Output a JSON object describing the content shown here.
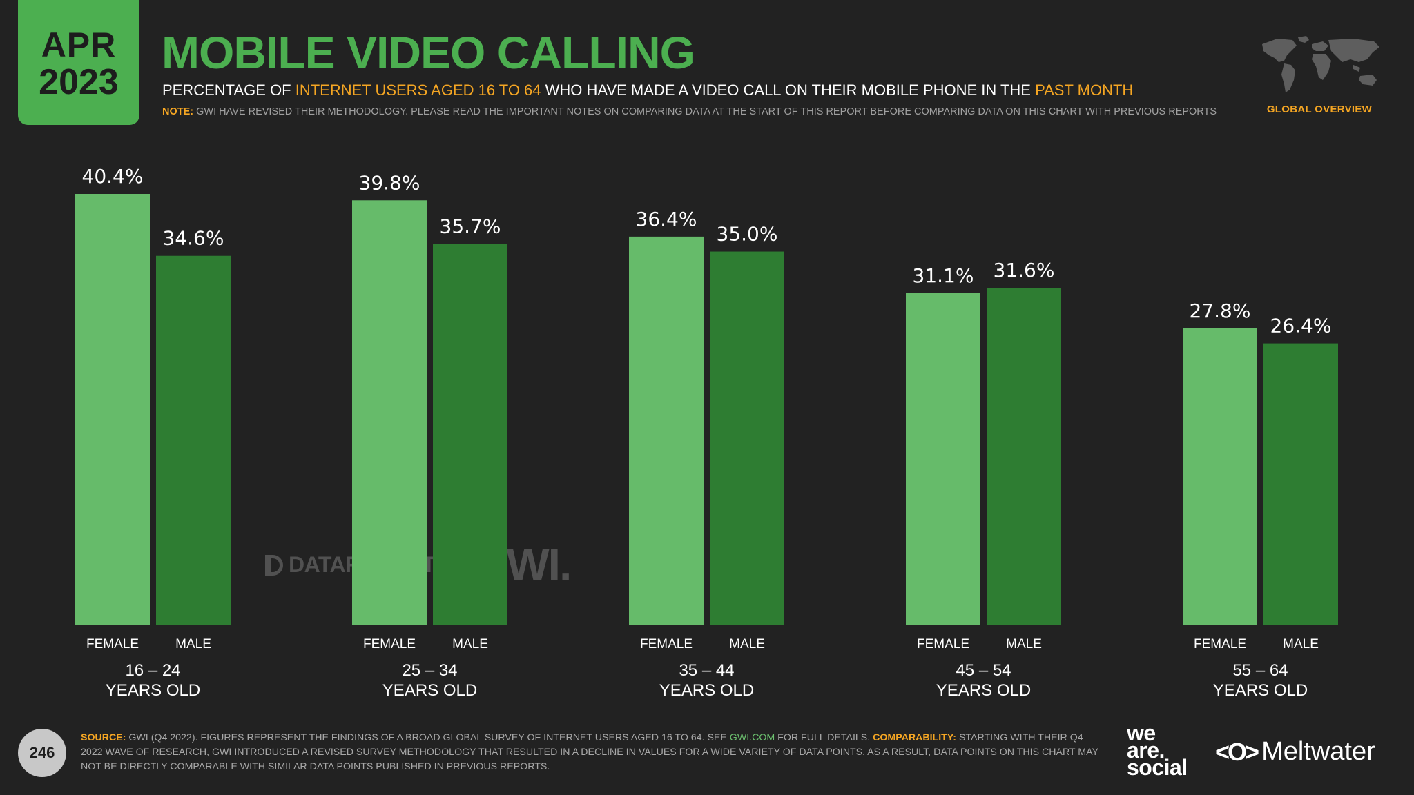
{
  "header": {
    "date_month": "APR",
    "date_year": "2023",
    "title": "MOBILE VIDEO CALLING",
    "subtitle_1": "PERCENTAGE OF ",
    "subtitle_hl_1": "INTERNET USERS AGED 16 TO 64",
    "subtitle_2": " WHO HAVE MADE A VIDEO CALL ON THEIR MOBILE PHONE IN THE ",
    "subtitle_hl_2": "PAST MONTH",
    "note_label": "NOTE:",
    "note_text": " GWI HAVE REVISED THEIR METHODOLOGY. PLEASE READ THE IMPORTANT NOTES ON COMPARING DATA AT THE START OF THIS REPORT BEFORE COMPARING DATA ON THIS CHART WITH PREVIOUS REPORTS",
    "region_label": "GLOBAL OVERVIEW"
  },
  "chart_data": {
    "type": "bar",
    "categories": [
      "16 – 24|YEARS OLD",
      "25 – 34|YEARS OLD",
      "35 – 44|YEARS OLD",
      "45 – 54|YEARS OLD",
      "55 – 64|YEARS OLD"
    ],
    "series": [
      {
        "name": "FEMALE",
        "values": [
          40.4,
          39.8,
          36.4,
          31.1,
          27.8
        ],
        "labels": [
          "40.4%",
          "39.8%",
          "36.4%",
          "31.1%",
          "27.8%"
        ],
        "color": "#66bb6a"
      },
      {
        "name": "MALE",
        "values": [
          34.6,
          35.7,
          35.0,
          31.6,
          26.4
        ],
        "labels": [
          "34.6%",
          "35.7%",
          "35.0%",
          "31.6%",
          "26.4%"
        ],
        "color": "#2e7d32"
      }
    ],
    "ylim": [
      0,
      40.4
    ],
    "grid": false,
    "legend": "none"
  },
  "watermarks": {
    "datareportal": "DATAREPORTAL",
    "gwi": "GWI."
  },
  "footer": {
    "page_number": "246",
    "source_label": "SOURCE:",
    "source_text_1": " GWI (Q4 2022). FIGURES REPRESENT THE FINDINGS OF A BROAD GLOBAL SURVEY OF INTERNET USERS AGED 16 TO 64. SEE ",
    "source_link": "GWI.COM",
    "source_text_2": " FOR FULL DETAILS. ",
    "comparability_label": "COMPARABILITY:",
    "comparability_text": " STARTING WITH THEIR Q4 2022 WAVE OF RESEARCH, GWI INTRODUCED A REVISED SURVEY METHODOLOGY THAT RESULTED IN A DECLINE IN VALUES FOR A WIDE VARIETY OF DATA POINTS. AS A RESULT, DATA POINTS ON THIS CHART MAY NOT BE DIRECTLY COMPARABLE WITH SIMILAR DATA POINTS PUBLISHED IN PREVIOUS REPORTS.",
    "brand_1_line_1": "we",
    "brand_1_line_2": "are.",
    "brand_1_line_3": "social",
    "brand_2_mark": "<O>",
    "brand_2": "Meltwater"
  },
  "colors": {
    "accent_green": "#4caf50",
    "female_green": "#66bb6a",
    "male_green": "#2e7d32",
    "highlight_orange": "#f5a623",
    "background": "#222222"
  },
  "icons": {
    "region_icon": "world-map-icon",
    "page_badge": "page-number-circle"
  }
}
